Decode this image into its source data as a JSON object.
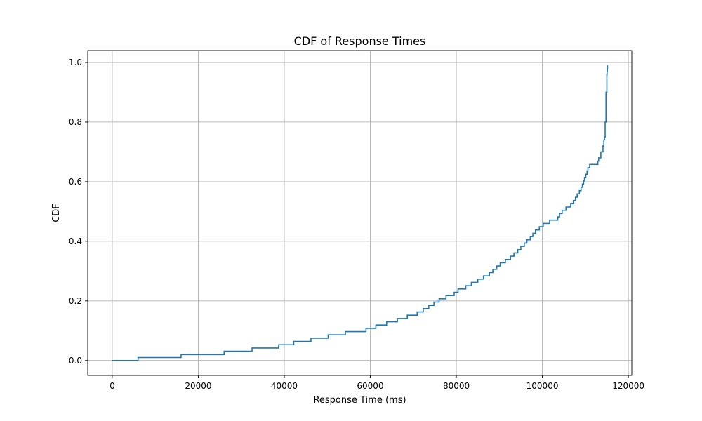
{
  "chart_data": {
    "type": "line",
    "step": true,
    "title": "CDF of Response Times",
    "xlabel": "Response Time (ms)",
    "ylabel": "CDF",
    "xlim": [
      -5700,
      120800
    ],
    "ylim": [
      -0.05,
      1.04
    ],
    "xticks": [
      0,
      20000,
      40000,
      60000,
      80000,
      100000,
      120000
    ],
    "xtick_labels": [
      "0",
      "20000",
      "40000",
      "60000",
      "80000",
      "100000",
      "120000"
    ],
    "yticks": [
      0.0,
      0.2,
      0.4,
      0.6,
      0.8,
      1.0
    ],
    "ytick_labels": [
      "0.0",
      "0.2",
      "0.4",
      "0.6",
      "0.8",
      "1.0"
    ],
    "grid": true,
    "colors": {
      "line": "#1f77b4"
    },
    "series": [
      {
        "x": [
          0,
          6000,
          16000,
          26000,
          32500,
          38700,
          42200,
          46200,
          50200,
          54200,
          59000,
          61300,
          63800,
          66300,
          68600,
          70900,
          72300,
          73600,
          74800,
          76000,
          77600,
          79500,
          80400,
          82200,
          83500,
          85000,
          86300,
          87700,
          88500,
          89400,
          90200,
          91400,
          92600,
          93400,
          94300,
          95000,
          95800,
          96400,
          97200,
          97800,
          98400,
          99300,
          100200,
          101700,
          103600,
          104000,
          104600,
          105500,
          106600,
          107200,
          107700,
          108100,
          108600,
          109000,
          109300,
          109600,
          109800,
          110100,
          110400,
          110600,
          111000,
          112900,
          113100,
          113600,
          114100,
          114300,
          114450,
          114600,
          114800,
          115000,
          115050,
          115100,
          115150,
          115200
        ],
        "y": [
          0.0,
          0.01,
          0.02,
          0.031,
          0.042,
          0.053,
          0.064,
          0.075,
          0.086,
          0.097,
          0.108,
          0.119,
          0.13,
          0.141,
          0.152,
          0.163,
          0.174,
          0.185,
          0.196,
          0.207,
          0.218,
          0.229,
          0.24,
          0.251,
          0.262,
          0.273,
          0.284,
          0.295,
          0.306,
          0.317,
          0.328,
          0.339,
          0.35,
          0.361,
          0.372,
          0.383,
          0.394,
          0.405,
          0.416,
          0.427,
          0.438,
          0.449,
          0.46,
          0.471,
          0.482,
          0.493,
          0.504,
          0.515,
          0.526,
          0.537,
          0.548,
          0.559,
          0.57,
          0.581,
          0.592,
          0.603,
          0.614,
          0.625,
          0.636,
          0.647,
          0.658,
          0.669,
          0.68,
          0.7,
          0.72,
          0.74,
          0.75,
          0.8,
          0.9,
          0.96,
          0.97,
          0.98,
          0.99,
          0.99
        ]
      }
    ]
  }
}
